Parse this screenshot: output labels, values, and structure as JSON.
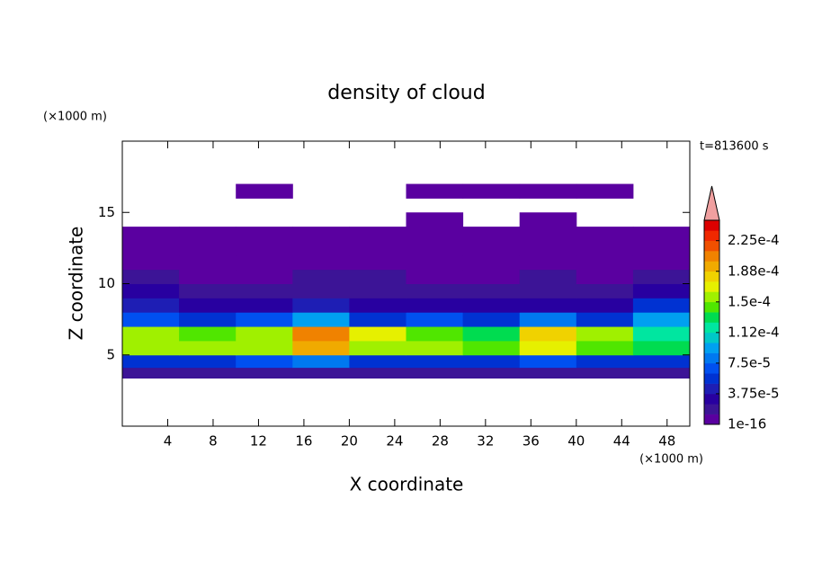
{
  "chart_data": {
    "type": "contour",
    "title": "density of cloud",
    "time_label": "t=813600 s",
    "x_label": "X coordinate",
    "y_label": "Z coordinate",
    "x_unit": "(×1000 m)",
    "y_unit": "(×1000 m)",
    "xlim": [
      0,
      50
    ],
    "ylim": [
      0,
      20
    ],
    "xticks": [
      4,
      8,
      12,
      16,
      20,
      24,
      28,
      32,
      36,
      40,
      44,
      48
    ],
    "yticks": [
      5,
      10,
      15
    ],
    "x": [
      2.5,
      7.5,
      12.5,
      17.5,
      22.5,
      27.5,
      32.5,
      37.5,
      42.5,
      47.5
    ],
    "z": [
      3.75,
      4.5,
      5.5,
      6.5,
      7.5,
      8.5,
      9.5,
      10.5,
      11.5,
      12.5,
      13.5,
      14.5,
      15.5,
      16.5
    ],
    "values": [
      [
        2e-05,
        2e-05,
        2e-05,
        2e-05,
        2e-05,
        2e-05,
        2e-05,
        2e-05,
        2e-05,
        2e-05
      ],
      [
        6e-05,
        6e-05,
        7e-05,
        8e-05,
        6e-05,
        6e-05,
        5e-05,
        7e-05,
        6e-05,
        6e-05
      ],
      [
        0.00016,
        0.00015,
        0.00016,
        0.00019,
        0.00016,
        0.00015,
        0.00014,
        0.00017,
        0.00014,
        0.00013
      ],
      [
        0.00015,
        0.00014,
        0.00016,
        0.00021,
        0.00017,
        0.00014,
        0.00013,
        0.00018,
        0.00016,
        0.00012
      ],
      [
        7e-05,
        6e-05,
        7e-05,
        9e-05,
        6e-05,
        7e-05,
        5e-05,
        8e-05,
        5e-05,
        9e-05
      ],
      [
        4e-05,
        3e-05,
        3e-05,
        4e-05,
        3e-05,
        3e-05,
        3e-05,
        3e-05,
        3e-05,
        5e-05
      ],
      [
        2.5e-05,
        2e-05,
        2e-05,
        2e-05,
        2e-05,
        2e-05,
        2e-05,
        2e-05,
        2e-05,
        3e-05
      ],
      [
        1.5e-05,
        1.2e-05,
        1.2e-05,
        1.3e-05,
        1.3e-05,
        1.2e-05,
        1.2e-05,
        1.3e-05,
        1.2e-05,
        1.5e-05
      ],
      [
        8e-06,
        6e-06,
        7e-06,
        6e-06,
        7e-06,
        6e-06,
        6e-06,
        7e-06,
        6e-06,
        8e-06
      ],
      [
        4e-06,
        4e-06,
        4e-06,
        3e-06,
        4e-06,
        4e-06,
        4e-06,
        4e-06,
        4e-06,
        4e-06
      ],
      [
        2e-06,
        2e-06,
        2e-06,
        2e-06,
        2e-06,
        2e-06,
        2e-06,
        2e-06,
        2e-06,
        2e-06
      ],
      [
        null,
        null,
        null,
        null,
        null,
        1e-06,
        null,
        1e-06,
        null,
        null
      ],
      [
        null,
        null,
        null,
        null,
        null,
        null,
        null,
        null,
        null,
        null
      ],
      [
        null,
        null,
        1e-06,
        null,
        null,
        1e-06,
        1e-06,
        1e-06,
        1e-06,
        null
      ]
    ],
    "levels": [
      1e-16,
      1.25e-05,
      2.5e-05,
      3.75e-05,
      5e-05,
      6.25e-05,
      7.5e-05,
      8.75e-05,
      0.0001,
      0.0001125,
      0.000125,
      0.0001375,
      0.00015,
      0.0001625,
      0.000175,
      0.0001875,
      0.0002,
      0.0002125,
      0.000225,
      0.0002375
    ],
    "colors": [
      "#5a00a0",
      "#3c1496",
      "#2800a0",
      "#1e1eb4",
      "#0032d2",
      "#0050f0",
      "#0078f0",
      "#00a0f0",
      "#00c8c8",
      "#00e6a0",
      "#00dc50",
      "#50e600",
      "#a0f000",
      "#e6f000",
      "#f0d200",
      "#f0aa00",
      "#f08200",
      "#f05000",
      "#f02800",
      "#dc0000"
    ],
    "extend_color": "#f0a0a0",
    "colorbar_ticks": [
      {
        "value": 1e-16,
        "label": "1e-16"
      },
      {
        "value": 3.75e-05,
        "label": "3.75e-5"
      },
      {
        "value": 7.5e-05,
        "label": "7.5e-5"
      },
      {
        "value": 0.0001125,
        "label": "1.12e-4"
      },
      {
        "value": 0.00015,
        "label": "1.5e-4"
      },
      {
        "value": 0.0001875,
        "label": "1.88e-4"
      },
      {
        "value": 0.000225,
        "label": "2.25e-4"
      }
    ]
  }
}
